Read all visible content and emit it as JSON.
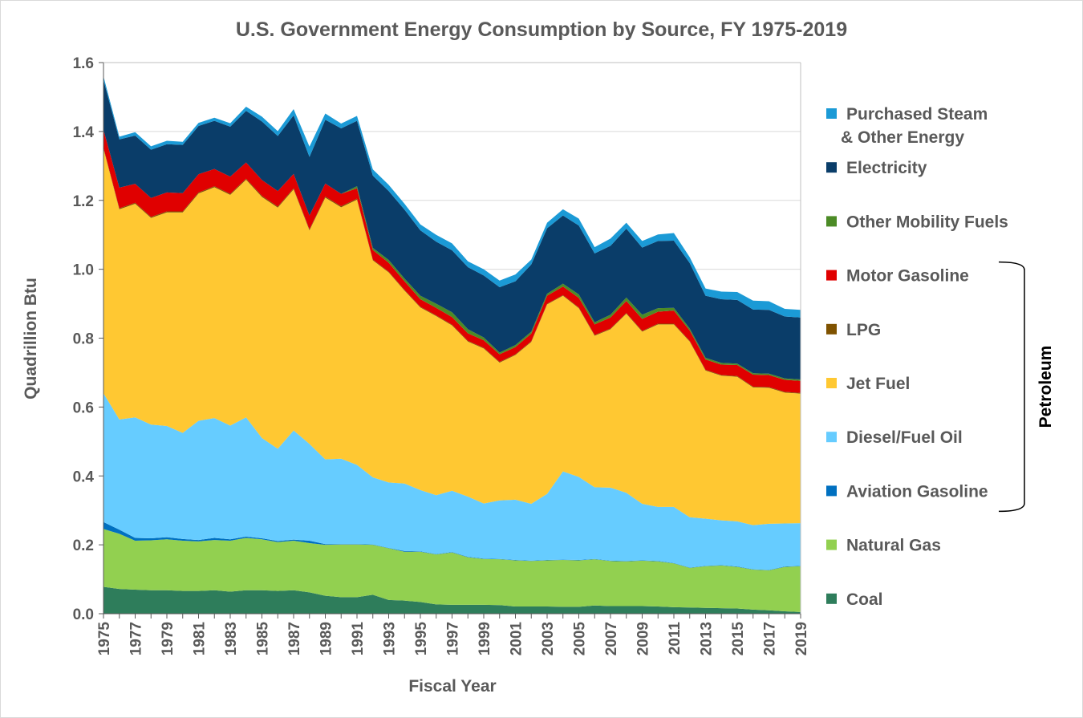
{
  "chart_data": {
    "type": "area",
    "stacked": true,
    "title": "U.S. Government Energy Consumption by Source, FY 1975-2019",
    "xlabel": "Fiscal Year",
    "ylabel": "Quadrillion Btu",
    "ylim": [
      0,
      1.6
    ],
    "yticks": [
      "0.0",
      "0.2",
      "0.4",
      "0.6",
      "0.8",
      "1.0",
      "1.2",
      "1.4",
      "1.6"
    ],
    "grid": true,
    "legend_position": "right",
    "x": [
      1975,
      1976,
      1977,
      1978,
      1979,
      1980,
      1981,
      1982,
      1983,
      1984,
      1985,
      1986,
      1987,
      1988,
      1989,
      1990,
      1991,
      1992,
      1993,
      1994,
      1995,
      1996,
      1997,
      1998,
      1999,
      2000,
      2001,
      2002,
      2003,
      2004,
      2005,
      2006,
      2007,
      2008,
      2009,
      2010,
      2011,
      2012,
      2013,
      2014,
      2015,
      2016,
      2017,
      2018,
      2019
    ],
    "xtick_labels": [
      "1975",
      "1977",
      "1979",
      "1981",
      "1983",
      "1985",
      "1987",
      "1989",
      "1991",
      "1993",
      "1995",
      "1997",
      "1999",
      "2001",
      "2003",
      "2005",
      "2007",
      "2009",
      "2011",
      "2013",
      "2015",
      "2017",
      "2019"
    ],
    "series": [
      {
        "name": "Coal",
        "color": "#2e7d5b",
        "values": [
          0.078,
          0.072,
          0.07,
          0.068,
          0.068,
          0.066,
          0.066,
          0.068,
          0.064,
          0.068,
          0.068,
          0.066,
          0.068,
          0.062,
          0.052,
          0.048,
          0.048,
          0.055,
          0.04,
          0.038,
          0.034,
          0.027,
          0.026,
          0.026,
          0.026,
          0.025,
          0.021,
          0.021,
          0.021,
          0.02,
          0.02,
          0.024,
          0.022,
          0.022,
          0.022,
          0.021,
          0.019,
          0.018,
          0.017,
          0.016,
          0.015,
          0.012,
          0.01,
          0.007,
          0.005
        ]
      },
      {
        "name": "Natural Gas",
        "color": "#92d050",
        "values": [
          0.168,
          0.16,
          0.142,
          0.145,
          0.148,
          0.146,
          0.144,
          0.146,
          0.148,
          0.152,
          0.148,
          0.142,
          0.144,
          0.143,
          0.148,
          0.153,
          0.153,
          0.145,
          0.15,
          0.142,
          0.146,
          0.145,
          0.152,
          0.138,
          0.133,
          0.133,
          0.134,
          0.132,
          0.134,
          0.136,
          0.135,
          0.134,
          0.131,
          0.13,
          0.132,
          0.131,
          0.127,
          0.115,
          0.121,
          0.124,
          0.121,
          0.116,
          0.116,
          0.129,
          0.133
        ]
      },
      {
        "name": "Aviation Gasoline",
        "color": "#0070c0",
        "values": [
          0.02,
          0.012,
          0.008,
          0.006,
          0.006,
          0.005,
          0.004,
          0.006,
          0.004,
          0.004,
          0.003,
          0.003,
          0.003,
          0.007,
          0.002,
          0.001,
          0.001,
          0.001,
          0.001,
          0.002,
          0.001,
          0.001,
          0.001,
          0.001,
          0.001,
          0.001,
          0.001,
          0.001,
          0.001,
          0.001,
          0.001,
          0.001,
          0.001,
          0.001,
          0.001,
          0.001,
          0.001,
          0.001,
          0.001,
          0.001,
          0.001,
          0.001,
          0.001,
          0.001,
          0.001
        ]
      },
      {
        "name": "Diesel/Fuel Oil",
        "color": "#66ccff",
        "values": [
          0.374,
          0.32,
          0.35,
          0.33,
          0.323,
          0.308,
          0.346,
          0.348,
          0.33,
          0.346,
          0.291,
          0.268,
          0.317,
          0.281,
          0.246,
          0.248,
          0.23,
          0.195,
          0.19,
          0.196,
          0.178,
          0.171,
          0.178,
          0.175,
          0.16,
          0.17,
          0.175,
          0.165,
          0.192,
          0.256,
          0.241,
          0.208,
          0.212,
          0.198,
          0.164,
          0.157,
          0.163,
          0.146,
          0.137,
          0.13,
          0.131,
          0.128,
          0.134,
          0.125,
          0.124
        ]
      },
      {
        "name": "Jet Fuel",
        "color": "#ffc832",
        "values": [
          0.71,
          0.61,
          0.62,
          0.6,
          0.62,
          0.64,
          0.66,
          0.67,
          0.67,
          0.69,
          0.7,
          0.7,
          0.7,
          0.62,
          0.76,
          0.73,
          0.77,
          0.63,
          0.61,
          0.56,
          0.53,
          0.52,
          0.48,
          0.45,
          0.45,
          0.4,
          0.42,
          0.47,
          0.55,
          0.51,
          0.49,
          0.44,
          0.46,
          0.52,
          0.5,
          0.53,
          0.53,
          0.51,
          0.43,
          0.42,
          0.42,
          0.4,
          0.395,
          0.38,
          0.376
        ]
      },
      {
        "name": "LPG",
        "color": "#7f5200",
        "values": [
          0.003,
          0.003,
          0.003,
          0.003,
          0.003,
          0.003,
          0.003,
          0.003,
          0.003,
          0.003,
          0.003,
          0.003,
          0.003,
          0.003,
          0.003,
          0.003,
          0.003,
          0.002,
          0.002,
          0.002,
          0.002,
          0.002,
          0.002,
          0.002,
          0.002,
          0.002,
          0.002,
          0.002,
          0.002,
          0.002,
          0.002,
          0.002,
          0.002,
          0.002,
          0.002,
          0.002,
          0.002,
          0.002,
          0.002,
          0.002,
          0.002,
          0.002,
          0.002,
          0.002,
          0.002
        ]
      },
      {
        "name": "Motor Gasoline",
        "color": "#e00000",
        "values": [
          0.052,
          0.06,
          0.055,
          0.055,
          0.055,
          0.053,
          0.053,
          0.05,
          0.05,
          0.047,
          0.046,
          0.045,
          0.042,
          0.04,
          0.038,
          0.036,
          0.03,
          0.028,
          0.026,
          0.025,
          0.022,
          0.022,
          0.022,
          0.022,
          0.022,
          0.022,
          0.021,
          0.022,
          0.023,
          0.025,
          0.028,
          0.031,
          0.032,
          0.035,
          0.035,
          0.035,
          0.038,
          0.03,
          0.03,
          0.03,
          0.032,
          0.035,
          0.035,
          0.035,
          0.035
        ]
      },
      {
        "name": "Other Mobility Fuels",
        "color": "#4c8b26",
        "values": [
          0,
          0,
          0,
          0,
          0,
          0,
          0,
          0,
          0,
          0,
          0,
          0,
          0,
          0,
          0,
          0,
          0.006,
          0.006,
          0.008,
          0.008,
          0.01,
          0.012,
          0.014,
          0.012,
          0.008,
          0.005,
          0.006,
          0.006,
          0.006,
          0.008,
          0.01,
          0.006,
          0.008,
          0.01,
          0.012,
          0.01,
          0.008,
          0.006,
          0.005,
          0.005,
          0.004,
          0.004,
          0.004,
          0.004,
          0.004
        ]
      },
      {
        "name": "Electricity",
        "color": "#0a3d69",
        "values": [
          0.145,
          0.14,
          0.14,
          0.14,
          0.14,
          0.14,
          0.14,
          0.14,
          0.145,
          0.15,
          0.17,
          0.16,
          0.17,
          0.17,
          0.185,
          0.19,
          0.19,
          0.21,
          0.2,
          0.2,
          0.19,
          0.18,
          0.18,
          0.18,
          0.18,
          0.19,
          0.185,
          0.195,
          0.19,
          0.198,
          0.2,
          0.2,
          0.2,
          0.2,
          0.195,
          0.195,
          0.195,
          0.19,
          0.18,
          0.185,
          0.185,
          0.185,
          0.185,
          0.18,
          0.18
        ]
      },
      {
        "name": "Purchased Steam & Other Energy",
        "legend_lines": [
          "Purchased Steam",
          "& Other Energy"
        ],
        "color": "#1b9ad6",
        "values": [
          0.01,
          0.008,
          0.01,
          0.01,
          0.01,
          0.009,
          0.009,
          0.009,
          0.01,
          0.012,
          0.014,
          0.014,
          0.018,
          0.03,
          0.018,
          0.014,
          0.014,
          0.018,
          0.018,
          0.017,
          0.017,
          0.02,
          0.02,
          0.017,
          0.018,
          0.019,
          0.02,
          0.014,
          0.016,
          0.018,
          0.02,
          0.018,
          0.021,
          0.017,
          0.019,
          0.019,
          0.022,
          0.017,
          0.021,
          0.022,
          0.023,
          0.026,
          0.025,
          0.022,
          0.022
        ]
      }
    ],
    "legend_order": [
      "Purchased Steam & Other Energy",
      "Electricity",
      "Other Mobility Fuels",
      "Motor Gasoline",
      "LPG",
      "Jet Fuel",
      "Diesel/Fuel Oil",
      "Aviation Gasoline",
      "Natural Gas",
      "Coal"
    ],
    "bracket_group": {
      "label": "Petroleum",
      "members": [
        "Motor Gasoline",
        "LPG",
        "Jet Fuel",
        "Diesel/Fuel Oil",
        "Aviation Gasoline"
      ]
    }
  }
}
